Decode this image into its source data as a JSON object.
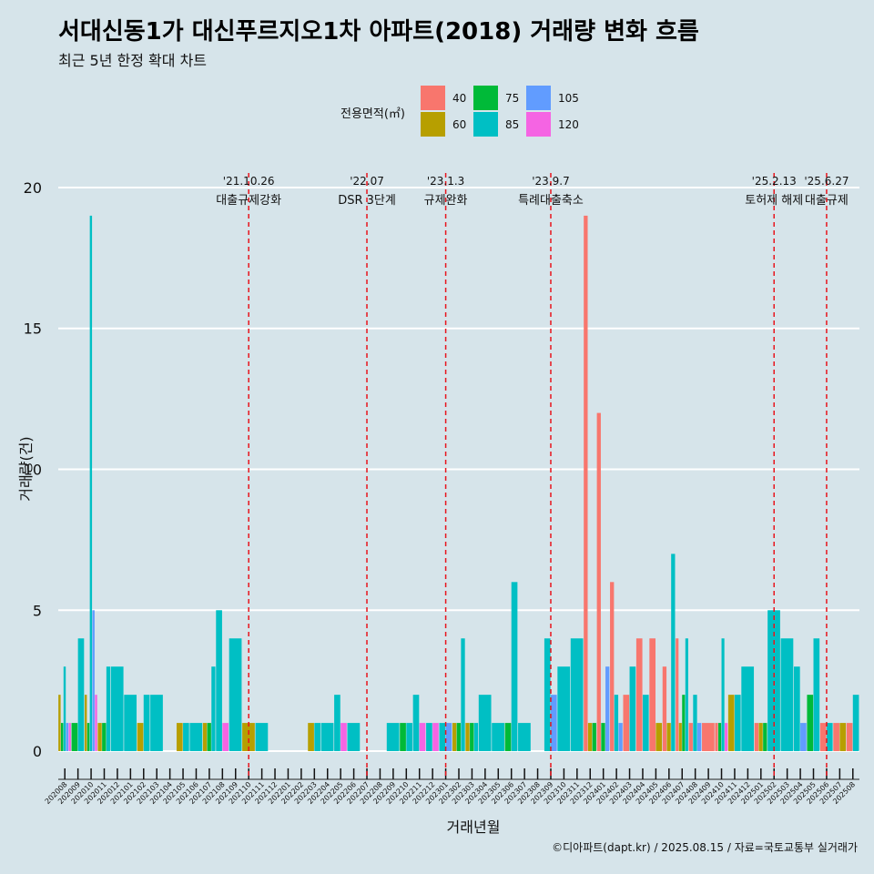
{
  "title": "서대신동1가 대신푸르지오1차 아파트(2018) 거래량 변화 흐름",
  "subtitle": "최근 5년 한정 확대 차트",
  "caption": "©디아파트(dapt.kr) / 2025.08.15 / 자료=국토교통부 실거래가",
  "legend": {
    "title": "전용면적(㎡)",
    "items": [
      {
        "label": "40",
        "color": "#f8766d"
      },
      {
        "label": "75",
        "color": "#00ba38"
      },
      {
        "label": "105",
        "color": "#619cff"
      },
      {
        "label": "60",
        "color": "#b79f00"
      },
      {
        "label": "85",
        "color": "#00bfc4"
      },
      {
        "label": "120",
        "color": "#f564e3"
      }
    ]
  },
  "chart_data": {
    "type": "bar",
    "xlabel": "거래년월",
    "ylabel": "거래량(건)",
    "ylim": [
      -1,
      21
    ],
    "yticks": [
      0,
      5,
      10,
      15,
      20
    ],
    "categories": [
      "202008",
      "202009",
      "202010",
      "202011",
      "202012",
      "202101",
      "202102",
      "202103",
      "202104",
      "202105",
      "202106",
      "202107",
      "202108",
      "202109",
      "202110",
      "202111",
      "202112",
      "202201",
      "202202",
      "202203",
      "202204",
      "202205",
      "202206",
      "202207",
      "202208",
      "202209",
      "202210",
      "202211",
      "202212",
      "202301",
      "202302",
      "202303",
      "202304",
      "202305",
      "202306",
      "202307",
      "202308",
      "202309",
      "202310",
      "202311",
      "202312",
      "202401",
      "202402",
      "202403",
      "202404",
      "202405",
      "202406",
      "202407",
      "202408",
      "202409",
      "202410",
      "202411",
      "202412",
      "202501",
      "202502",
      "202503",
      "202504",
      "202505",
      "202506",
      "202507",
      "202508"
    ],
    "series": [
      {
        "name": "40",
        "values": [
          0,
          0,
          0,
          0,
          0,
          0,
          0,
          0,
          0,
          0,
          0,
          0,
          0,
          0,
          0,
          0,
          0,
          0,
          0,
          0,
          0,
          0,
          0,
          0,
          0,
          0,
          0,
          0,
          0,
          0,
          0,
          0,
          0,
          0,
          0,
          0,
          0,
          0,
          0,
          0,
          19,
          12,
          6,
          2,
          4,
          4,
          3,
          4,
          1,
          1,
          1,
          0,
          0,
          1,
          0,
          0,
          0,
          0,
          1,
          1,
          1
        ]
      },
      {
        "name": "60",
        "values": [
          2,
          0,
          2,
          1,
          0,
          0,
          1,
          0,
          0,
          1,
          0,
          1,
          0,
          0,
          1,
          0,
          0,
          0,
          0,
          1,
          0,
          0,
          0,
          0,
          0,
          0,
          0,
          0,
          0,
          0,
          1,
          1,
          0,
          0,
          0,
          0,
          0,
          0,
          0,
          0,
          1,
          0,
          0,
          0,
          0,
          1,
          1,
          1,
          0,
          0,
          0,
          2,
          0,
          1,
          0,
          0,
          0,
          0,
          0,
          1,
          0
        ]
      },
      {
        "name": "75",
        "values": [
          1,
          1,
          1,
          1,
          0,
          0,
          0,
          0,
          0,
          0,
          0,
          1,
          0,
          0,
          0,
          0,
          0,
          0,
          0,
          0,
          0,
          0,
          0,
          0,
          0,
          0,
          1,
          0,
          0,
          0,
          1,
          1,
          0,
          0,
          1,
          0,
          0,
          0,
          0,
          0,
          1,
          1,
          0,
          0,
          0,
          0,
          0,
          2,
          0,
          0,
          1,
          0,
          0,
          1,
          0,
          0,
          0,
          2,
          0,
          0,
          0
        ]
      },
      {
        "name": "85",
        "values": [
          3,
          4,
          19,
          3,
          3,
          2,
          2,
          2,
          0,
          1,
          1,
          3,
          5,
          4,
          0,
          1,
          0,
          0,
          0,
          1,
          1,
          2,
          1,
          0,
          0,
          1,
          1,
          2,
          1,
          1,
          4,
          1,
          2,
          1,
          6,
          1,
          0,
          4,
          3,
          4,
          0,
          0,
          2,
          3,
          2,
          0,
          7,
          4,
          2,
          0,
          4,
          2,
          3,
          0,
          5,
          4,
          3,
          4,
          1,
          0,
          2
        ]
      },
      {
        "name": "105",
        "values": [
          1,
          0,
          5,
          0,
          0,
          0,
          0,
          0,
          0,
          0,
          0,
          0,
          0,
          0,
          0,
          0,
          0,
          0,
          0,
          0,
          0,
          0,
          0,
          0,
          0,
          0,
          0,
          0,
          0,
          1,
          0,
          0,
          0,
          0,
          0,
          0,
          0,
          2,
          0,
          0,
          0,
          3,
          1,
          0,
          0,
          0,
          0,
          0,
          1,
          0,
          0,
          0,
          0,
          0,
          0,
          0,
          1,
          0,
          0,
          0,
          0
        ]
      },
      {
        "name": "120",
        "values": [
          1,
          0,
          2,
          0,
          0,
          0,
          0,
          0,
          0,
          0,
          0,
          0,
          1,
          0,
          0,
          0,
          0,
          0,
          0,
          0,
          0,
          1,
          0,
          0,
          0,
          0,
          0,
          1,
          1,
          0,
          0,
          0,
          0,
          0,
          0,
          0,
          0,
          0,
          0,
          0,
          0,
          0,
          0,
          0,
          0,
          0,
          0,
          0,
          0,
          0,
          1,
          0,
          0,
          0,
          0,
          0,
          0,
          0,
          0,
          0,
          0
        ]
      }
    ],
    "annotations": [
      {
        "x": "202110",
        "date": "'21.10.26",
        "text": "대출규제강화"
      },
      {
        "x": "202207",
        "date": "'22.07",
        "text": "DSR 3단계"
      },
      {
        "x": "202301",
        "date": "'23.1.3",
        "text": "규제완화"
      },
      {
        "x": "202309",
        "date": "'23.9.7",
        "text": "특례대출축소"
      },
      {
        "x": "202502",
        "date": "'25.2.13",
        "text": "토허제 해제"
      },
      {
        "x": "202506",
        "date": "'25.6.27",
        "text": "대출규제"
      }
    ]
  }
}
